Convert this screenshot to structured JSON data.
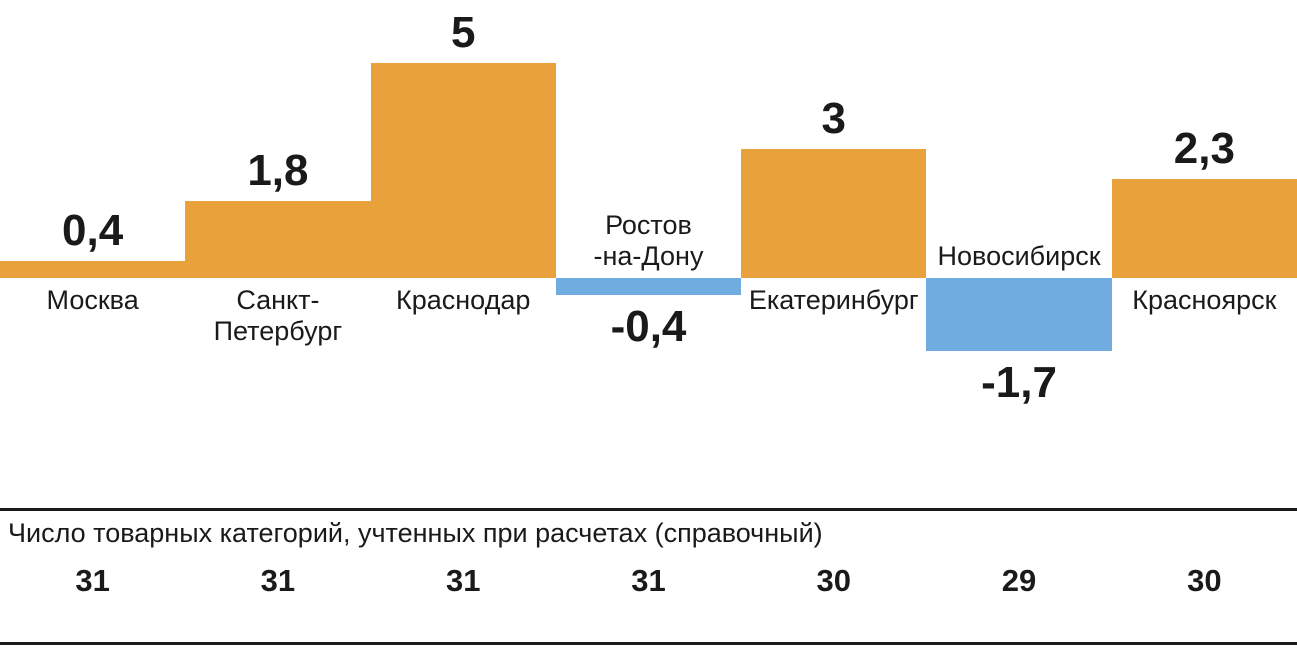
{
  "chart_data": {
    "type": "bar",
    "orientation": "vertical",
    "grid": false,
    "legend": false,
    "value_range": [
      -1.7,
      5
    ],
    "categories": [
      "Москва",
      "Санкт-Петербург",
      "Краснодар",
      "Ростов-на-Дону",
      "Екатеринбург",
      "Новосибирск",
      "Красноярск"
    ],
    "series": [
      {
        "key": "moscow",
        "label_lines": [
          "Москва"
        ],
        "value": 0.4,
        "display": "0,4"
      },
      {
        "key": "saint-petersburg",
        "label_lines": [
          "Санкт-",
          "Петербург"
        ],
        "value": 1.8,
        "display": "1,8"
      },
      {
        "key": "krasnodar",
        "label_lines": [
          "Краснодар"
        ],
        "value": 5,
        "display": "5"
      },
      {
        "key": "rostov-on-don",
        "label_lines": [
          "Ростов",
          "-на-Дону"
        ],
        "value": -0.4,
        "display": "-0,4"
      },
      {
        "key": "ekaterinburg",
        "label_lines": [
          "Екатеринбург"
        ],
        "value": 3,
        "display": "3"
      },
      {
        "key": "novosibirsk",
        "label_lines": [
          "Новосибирск"
        ],
        "value": -1.7,
        "display": "-1,7"
      },
      {
        "key": "krasnoyarsk",
        "label_lines": [
          "Красноярск"
        ],
        "value": 2.3,
        "display": "2,3"
      }
    ],
    "colors": {
      "positive": "#E9A23B",
      "negative": "#70ACDF",
      "text": "#1A1A1A"
    }
  },
  "footer": {
    "label": "Число товарных категорий, учтенных при расчетах (справочный)",
    "counts": [
      "31",
      "31",
      "31",
      "31",
      "30",
      "29",
      "30"
    ]
  }
}
